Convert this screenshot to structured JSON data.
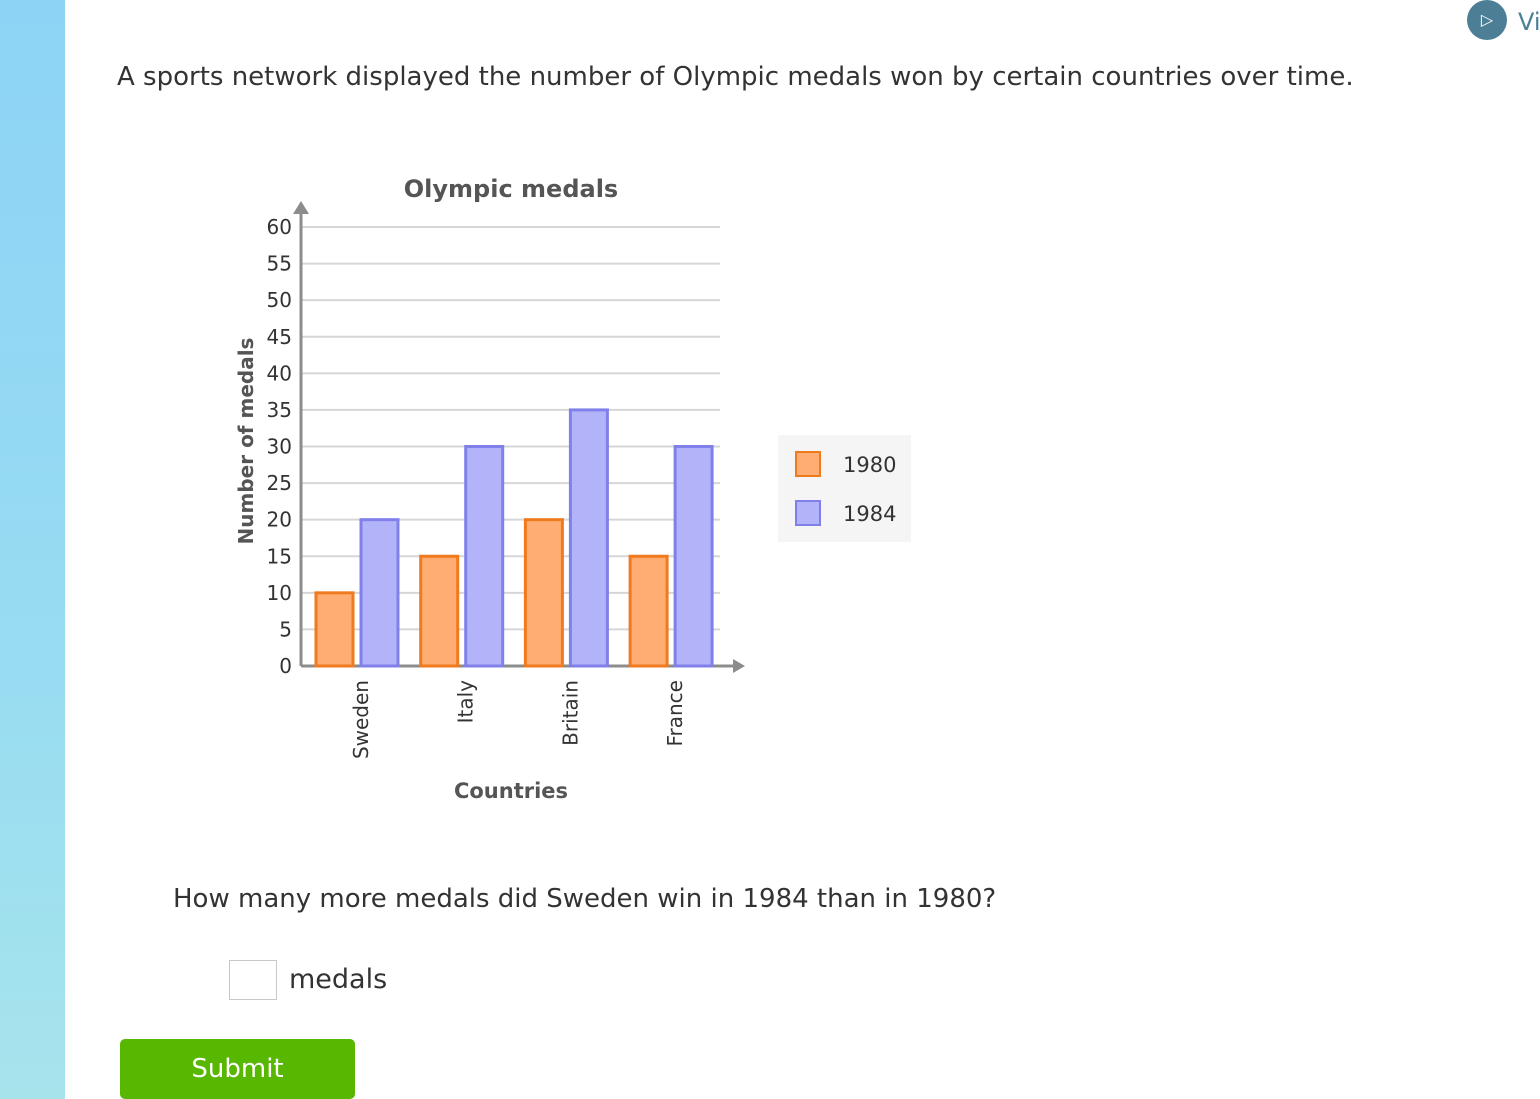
{
  "prompt": "A sports network displayed the number of Olympic medals won by certain countries over time.",
  "video_button": {
    "icon": "play-icon",
    "label": "Vi"
  },
  "question": "How many more medals did Sweden win in 1984 than in 1980?",
  "answer": {
    "value": "",
    "unit": "medals"
  },
  "submit_label": "Submit",
  "colors": {
    "series_1980_fill": "#ffad73",
    "series_1980_stroke": "#f07a1e",
    "series_1984_fill": "#b3b3fa",
    "series_1984_stroke": "#8080ea",
    "submit": "#58b700",
    "side_strip": "#8dd3f5"
  },
  "chart_data": {
    "type": "bar",
    "title": "Olympic medals",
    "xlabel": "Countries",
    "ylabel": "Number of medals",
    "categories": [
      "Sweden",
      "Italy",
      "Britain",
      "France"
    ],
    "series": [
      {
        "name": "1980",
        "values": [
          10,
          15,
          20,
          15
        ]
      },
      {
        "name": "1984",
        "values": [
          20,
          30,
          35,
          30
        ]
      }
    ],
    "ylim": [
      0,
      60
    ],
    "yticks": [
      0,
      5,
      10,
      15,
      20,
      25,
      30,
      35,
      40,
      45,
      50,
      55,
      60
    ],
    "grid": true,
    "legend_position": "right"
  }
}
